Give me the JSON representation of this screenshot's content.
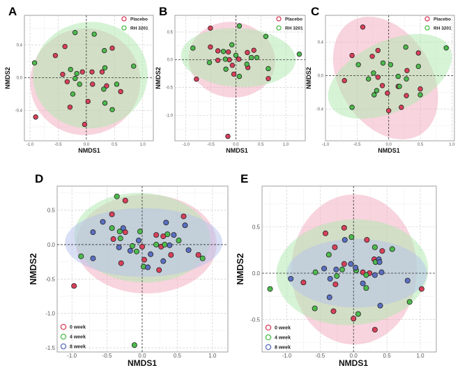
{
  "colors": {
    "placebo": "#d9405a",
    "rh3201": "#4dbb4d",
    "week0": "#d9405a",
    "week4": "#4dbb4d",
    "week8": "#5b6fc2",
    "ellipse_red": "#f2a9bd",
    "ellipse_green": "#aee8ae",
    "ellipse_blue": "#b3c0ec"
  },
  "chart_data": [
    {
      "panel": "A",
      "type": "scatter",
      "xlabel": "NMDS1",
      "ylabel": "NMDS2",
      "xlim": [
        -1.1,
        1.19
      ],
      "ylim": [
        -0.77,
        0.76
      ],
      "xticks": [
        "-1.0",
        "-0.5",
        "0.0",
        "0.5",
        "1.0"
      ],
      "xtick_values": [
        -1,
        -0.5,
        0,
        0.5,
        1
      ],
      "yticks": [
        "-0.4",
        "0.0",
        "0.4"
      ],
      "ytick_values": [
        -0.4,
        0,
        0.4
      ],
      "legend_position": "top-right",
      "series": [
        {
          "name": "Placebo",
          "color": "#d9405a",
          "ellipse": {
            "cx": -0.02,
            "cy": -0.05,
            "rx": 0.98,
            "ry": 0.65,
            "angle": -8,
            "color": "#f2a9bd"
          },
          "points": [
            [
              -0.38,
              0.38
            ],
            [
              -0.55,
              0.27
            ],
            [
              0.46,
              0.36
            ],
            [
              -0.42,
              0.04
            ],
            [
              -0.07,
              0.07
            ],
            [
              0.1,
              0.07
            ],
            [
              0.28,
              0.07
            ],
            [
              -0.34,
              -0.05
            ],
            [
              0.11,
              -0.08
            ],
            [
              0.36,
              -0.1
            ],
            [
              0.61,
              -0.17
            ],
            [
              0.03,
              -0.29
            ],
            [
              -0.29,
              -0.36
            ],
            [
              -0.03,
              -0.57
            ],
            [
              -0.9,
              -0.48
            ]
          ]
        },
        {
          "name": "RH 3201",
          "color": "#4dbb4d",
          "ellipse": {
            "cx": 0.07,
            "cy": 0.03,
            "rx": 1.02,
            "ry": 0.65,
            "angle": -5,
            "color": "#aee8ae"
          },
          "points": [
            [
              -0.2,
              0.55
            ],
            [
              0.14,
              0.53
            ],
            [
              0.32,
              0.33
            ],
            [
              -0.92,
              0.18
            ],
            [
              0.84,
              0.14
            ],
            [
              0.33,
              0.12
            ],
            [
              -0.28,
              0.1
            ],
            [
              -0.17,
              0.05
            ],
            [
              -0.2,
              -0.01
            ],
            [
              -0.12,
              -0.08
            ],
            [
              0.54,
              -0.08
            ],
            [
              0.31,
              -0.14
            ],
            [
              -0.24,
              -0.2
            ],
            [
              0.33,
              -0.31
            ],
            [
              0.46,
              -0.39
            ]
          ]
        }
      ]
    },
    {
      "panel": "B",
      "type": "scatter",
      "xlabel": "NMDS1",
      "ylabel": "NMDS2",
      "xlim": [
        -1.22,
        1.39
      ],
      "ylim": [
        -1.46,
        0.8
      ],
      "xticks": [
        "-1.0",
        "-0.5",
        "0.0",
        "0.5",
        "1.0"
      ],
      "xtick_values": [
        -1,
        -0.5,
        0,
        0.5,
        1
      ],
      "yticks": [
        "-1.0",
        "-0.5",
        "0.0",
        "0.5"
      ],
      "ytick_values": [
        -1,
        -0.5,
        0,
        0.5
      ],
      "legend_position": "top-right",
      "series": [
        {
          "name": "Placebo",
          "color": "#d9405a",
          "ellipse": {
            "cx": -0.08,
            "cy": 0.0,
            "rx": 0.87,
            "ry": 0.68,
            "angle": 8,
            "color": "#f2a9bd"
          },
          "points": [
            [
              -0.51,
              0.57
            ],
            [
              -0.51,
              0.23
            ],
            [
              -0.36,
              0.16
            ],
            [
              -0.15,
              0.14
            ],
            [
              -0.36,
              -0.01
            ],
            [
              -0.13,
              0
            ],
            [
              0.06,
              0.01
            ],
            [
              0.23,
              0.13
            ],
            [
              0.36,
              0.17
            ],
            [
              -0.07,
              -0.1
            ],
            [
              0.24,
              -0.14
            ],
            [
              -0.04,
              -0.26
            ],
            [
              0.65,
              -0.34
            ],
            [
              -0.79,
              -0.35
            ],
            [
              -0.16,
              -1.38
            ]
          ]
        },
        {
          "name": "RH 3201",
          "color": "#4dbb4d",
          "ellipse": {
            "cx": 0.05,
            "cy": 0.04,
            "rx": 1.15,
            "ry": 0.53,
            "angle": 3,
            "color": "#aee8ae"
          },
          "points": [
            [
              0.07,
              0.61
            ],
            [
              0.6,
              0.42
            ],
            [
              -0.86,
              0.21
            ],
            [
              -0.08,
              0.27
            ],
            [
              -0.25,
              0.15
            ],
            [
              0,
              0.08
            ],
            [
              0.31,
              0.04
            ],
            [
              0.42,
              0.04
            ],
            [
              -0.21,
              0.01
            ],
            [
              -0.53,
              -0.05
            ],
            [
              0.22,
              -0.08
            ],
            [
              -0.2,
              -0.17
            ],
            [
              0.65,
              -0.16
            ],
            [
              0.07,
              -0.3
            ],
            [
              1.27,
              0.1
            ]
          ]
        }
      ]
    },
    {
      "panel": "C",
      "type": "scatter",
      "xlabel": "NMDS1",
      "ylabel": "NMDS2",
      "xlim": [
        -1.0,
        1.04
      ],
      "ylim": [
        -0.78,
        0.72
      ],
      "xticks": [
        "-1.0",
        "-0.5",
        "0.0",
        "0.5",
        "1.0"
      ],
      "xtick_values": [
        -1,
        -0.5,
        0,
        0.5,
        1
      ],
      "yticks": [
        "-0.4",
        "0.0",
        "0.4"
      ],
      "ytick_values": [
        -0.4,
        0,
        0.4
      ],
      "legend_position": "top-right",
      "series": [
        {
          "name": "Placebo",
          "color": "#d9405a",
          "ellipse": {
            "cx": -0.05,
            "cy": -0.03,
            "rx": 1.05,
            "ry": 0.55,
            "angle": 58,
            "color": "#f2a9bd"
          },
          "points": [
            [
              -0.41,
              0.58
            ],
            [
              -0.58,
              0.24
            ],
            [
              -0.17,
              0.3
            ],
            [
              -0.26,
              0.23
            ],
            [
              0.47,
              0.27
            ],
            [
              0.29,
              0.06
            ],
            [
              -0.17,
              -0.02
            ],
            [
              -0.7,
              -0.06
            ],
            [
              -0.1,
              -0.12
            ],
            [
              0.15,
              -0.13
            ],
            [
              0.5,
              -0.16
            ],
            [
              -0.02,
              -0.21
            ],
            [
              0.28,
              -0.24
            ],
            [
              0.2,
              -0.38
            ],
            [
              0,
              -0.42
            ]
          ]
        },
        {
          "name": "RH 3201",
          "color": "#4dbb4d",
          "ellipse": {
            "cx": 0.02,
            "cy": -0.01,
            "rx": 1.05,
            "ry": 0.42,
            "angle": -25,
            "color": "#aee8ae"
          },
          "points": [
            [
              0.27,
              0.34
            ],
            [
              0.91,
              0.33
            ],
            [
              -0.48,
              0.13
            ],
            [
              -0.09,
              0.15
            ],
            [
              0.03,
              0.13
            ],
            [
              0.47,
              0.11
            ],
            [
              -0.24,
              0.03
            ],
            [
              -0.32,
              -0.04
            ],
            [
              0.15,
              -0.01
            ],
            [
              0.28,
              -0.04
            ],
            [
              0.17,
              -0.13
            ],
            [
              -0.19,
              -0.18
            ],
            [
              -0.23,
              -0.23
            ],
            [
              0.5,
              -0.23
            ],
            [
              -0.58,
              -0.38
            ]
          ]
        }
      ]
    },
    {
      "panel": "D",
      "type": "scatter",
      "xlabel": "NMDS1",
      "ylabel": "NMDS2",
      "xlim": [
        -1.21,
        1.22
      ],
      "ylim": [
        -1.56,
        0.85
      ],
      "xticks": [
        "-1.0",
        "-0.5",
        "0.0",
        "0.5",
        "1.0"
      ],
      "xtick_values": [
        -1,
        -0.5,
        0,
        0.5,
        1
      ],
      "yticks": [
        "-1.5",
        "-1.0",
        "-0.5",
        "0.0",
        "0.5"
      ],
      "ytick_values": [
        -1.5,
        -1,
        -0.5,
        0,
        0.5
      ],
      "legend_position": "bottom-left",
      "series": [
        {
          "name": "0 week",
          "color": "#d9405a",
          "ellipse": {
            "cx": 0.06,
            "cy": 0.01,
            "rx": 1.0,
            "ry": 0.72,
            "angle": 0,
            "color": "#f2a9bd"
          },
          "points": [
            [
              -0.24,
              0.64
            ],
            [
              -0.43,
              0.44
            ],
            [
              0.59,
              0.41
            ],
            [
              -0.24,
              0.18
            ],
            [
              -0.41,
              0.08
            ],
            [
              0.2,
              0.14
            ],
            [
              0.3,
              0.12
            ],
            [
              0,
              -0.03
            ],
            [
              0.27,
              -0.03
            ],
            [
              0.41,
              -0.15
            ],
            [
              0.8,
              -0.15
            ],
            [
              0.03,
              -0.22
            ],
            [
              -0.3,
              -0.27
            ],
            [
              0.24,
              -0.37
            ],
            [
              -0.97,
              -0.6
            ]
          ]
        },
        {
          "name": "4 week",
          "color": "#4dbb4d",
          "ellipse": {
            "cx": 0.0,
            "cy": 0.1,
            "rx": 0.97,
            "ry": 0.65,
            "angle": 3,
            "color": "#aee8ae"
          },
          "points": [
            [
              -0.36,
              0.7
            ],
            [
              -0.43,
              0.24
            ],
            [
              -0.32,
              0.19
            ],
            [
              -0.03,
              0.19
            ],
            [
              -0.31,
              0.09
            ],
            [
              0.36,
              0.15
            ],
            [
              0.52,
              0.06
            ],
            [
              -0.14,
              -0.02
            ],
            [
              -0.08,
              -0.1
            ],
            [
              0.2,
              0
            ],
            [
              0.32,
              0
            ],
            [
              -0.87,
              -0.17
            ],
            [
              0.86,
              -0.2
            ],
            [
              0.02,
              -0.32
            ],
            [
              -0.11,
              -1.46
            ]
          ]
        },
        {
          "name": "8 week",
          "color": "#5b6fc2",
          "ellipse": {
            "cx": 0.02,
            "cy": 0.03,
            "rx": 1.12,
            "ry": 0.5,
            "angle": 0,
            "color": "#b3c0ec"
          },
          "points": [
            [
              -0.56,
              0.33
            ],
            [
              0.34,
              0.32
            ],
            [
              0.61,
              0.28
            ],
            [
              -0.27,
              0.24
            ],
            [
              -0.7,
              0.18
            ],
            [
              0.45,
              0.14
            ],
            [
              -0.05,
              0.06
            ],
            [
              -0.33,
              -0.04
            ],
            [
              0.39,
              -0.01
            ],
            [
              -0.17,
              -0.09
            ],
            [
              0.12,
              -0.14
            ],
            [
              0.66,
              -0.08
            ],
            [
              -0.7,
              -0.2
            ],
            [
              0.3,
              -0.24
            ],
            [
              0.08,
              -0.33
            ]
          ]
        }
      ]
    },
    {
      "panel": "E",
      "type": "scatter",
      "xlabel": "NMDS1",
      "ylabel": "NMDS2",
      "xlim": [
        -1.37,
        1.24
      ],
      "ylim": [
        -0.85,
        0.94
      ],
      "xticks": [
        "-1.0",
        "-0.5",
        "0.0",
        "0.5",
        "1.0"
      ],
      "xtick_values": [
        -1,
        -0.5,
        0,
        0.5,
        1
      ],
      "yticks": [
        "-0.5",
        "0.0",
        "0.5"
      ],
      "ytick_values": [
        -0.5,
        0,
        0.5
      ],
      "legend_position": "bottom-left",
      "series": [
        {
          "name": "0 week",
          "color": "#d9405a",
          "ellipse": {
            "cx": 0.01,
            "cy": 0.04,
            "rx": 0.94,
            "ry": 0.81,
            "angle": 0,
            "color": "#f2a9bd"
          },
          "points": [
            [
              -0.14,
              0.49
            ],
            [
              -0.42,
              0.43
            ],
            [
              0.2,
              0.36
            ],
            [
              -0.28,
              0.28
            ],
            [
              0.43,
              0.24
            ],
            [
              0.31,
              0.15
            ],
            [
              -0.14,
              0.1
            ],
            [
              0.14,
              0.01
            ],
            [
              0.24,
              0
            ],
            [
              -0.75,
              -0.1
            ],
            [
              -0.27,
              -0.12
            ],
            [
              1.02,
              -0.17
            ],
            [
              -0.3,
              -0.41
            ],
            [
              0,
              -0.49
            ],
            [
              0.32,
              -0.61
            ]
          ]
        },
        {
          "name": "4 week",
          "color": "#4dbb4d",
          "ellipse": {
            "cx": -0.02,
            "cy": 0.01,
            "rx": 1.14,
            "ry": 0.57,
            "angle": -4,
            "color": "#aee8ae"
          },
          "points": [
            [
              -0.03,
              0.39
            ],
            [
              0.32,
              0.28
            ],
            [
              0.58,
              0.26
            ],
            [
              -0.37,
              0.2
            ],
            [
              0.33,
              0.12
            ],
            [
              -0.17,
              0.04
            ],
            [
              0.04,
              0.03
            ],
            [
              -0.57,
              0.01
            ],
            [
              -0.25,
              -0.03
            ],
            [
              0.19,
              -0.02
            ],
            [
              0.19,
              -0.16
            ],
            [
              -1.25,
              -0.17
            ],
            [
              0.84,
              -0.31
            ],
            [
              -0.58,
              -0.38
            ],
            [
              0.07,
              -0.44
            ]
          ]
        },
        {
          "name": "8 week",
          "color": "#5b6fc2",
          "ellipse": {
            "cx": 0.05,
            "cy": 0.0,
            "rx": 1.05,
            "ry": 0.37,
            "angle": 0,
            "color": "#b3c0ec"
          },
          "points": [
            [
              -0.13,
              0.36
            ],
            [
              0.38,
              0.15
            ],
            [
              0.39,
              0.12
            ],
            [
              -0.04,
              0.1
            ],
            [
              0.03,
              0.06
            ],
            [
              -0.44,
              0.05
            ],
            [
              -0.26,
              0.04
            ],
            [
              0.42,
              0.01
            ],
            [
              0.32,
              -0.02
            ],
            [
              -0.94,
              -0.06
            ],
            [
              -0.35,
              -0.06
            ],
            [
              0.81,
              -0.08
            ],
            [
              0.14,
              -0.11
            ],
            [
              -0.36,
              -0.26
            ],
            [
              0.4,
              -0.35
            ]
          ]
        }
      ]
    }
  ]
}
